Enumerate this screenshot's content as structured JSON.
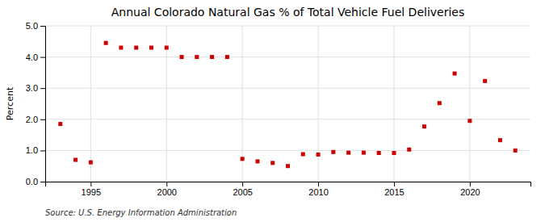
{
  "chart_data": {
    "type": "scatter",
    "title": "Annual Colorado Natural Gas % of Total Vehicle Fuel Deliveries",
    "y_label": "Percent",
    "source": "Source: U.S. Energy Information Administration",
    "x": [
      1993,
      1994,
      1995,
      1996,
      1997,
      1998,
      1999,
      2000,
      2001,
      2002,
      2003,
      2004,
      2005,
      2006,
      2007,
      2008,
      2009,
      2010,
      2011,
      2012,
      2013,
      2014,
      2015,
      2016,
      2017,
      2018,
      2019,
      2020,
      2021,
      2022,
      2023
    ],
    "values": [
      1.85,
      0.7,
      0.62,
      4.45,
      4.3,
      4.3,
      4.3,
      4.3,
      4.0,
      4.0,
      4.0,
      4.0,
      0.73,
      0.65,
      0.6,
      0.5,
      0.88,
      0.87,
      0.95,
      0.93,
      0.93,
      0.92,
      0.92,
      1.03,
      1.77,
      2.52,
      3.47,
      1.95,
      3.23,
      1.33,
      1.0
    ],
    "color": "#cc0000",
    "marker": "square",
    "xlim": [
      1992.0,
      2024.0
    ],
    "ylim": [
      0.0,
      5.0
    ],
    "xticks": [
      1995,
      2000,
      2005,
      2010,
      2015,
      2020
    ],
    "yticks": [
      {
        "value": 0.0,
        "label": "0.0"
      },
      {
        "value": 1.0,
        "label": "1.0"
      },
      {
        "value": 2.0,
        "label": "2.0"
      },
      {
        "value": 3.0,
        "label": "3.0"
      },
      {
        "value": 4.0,
        "label": "4.0"
      },
      {
        "value": 5.0,
        "label": "5.0"
      }
    ],
    "grid": true
  }
}
